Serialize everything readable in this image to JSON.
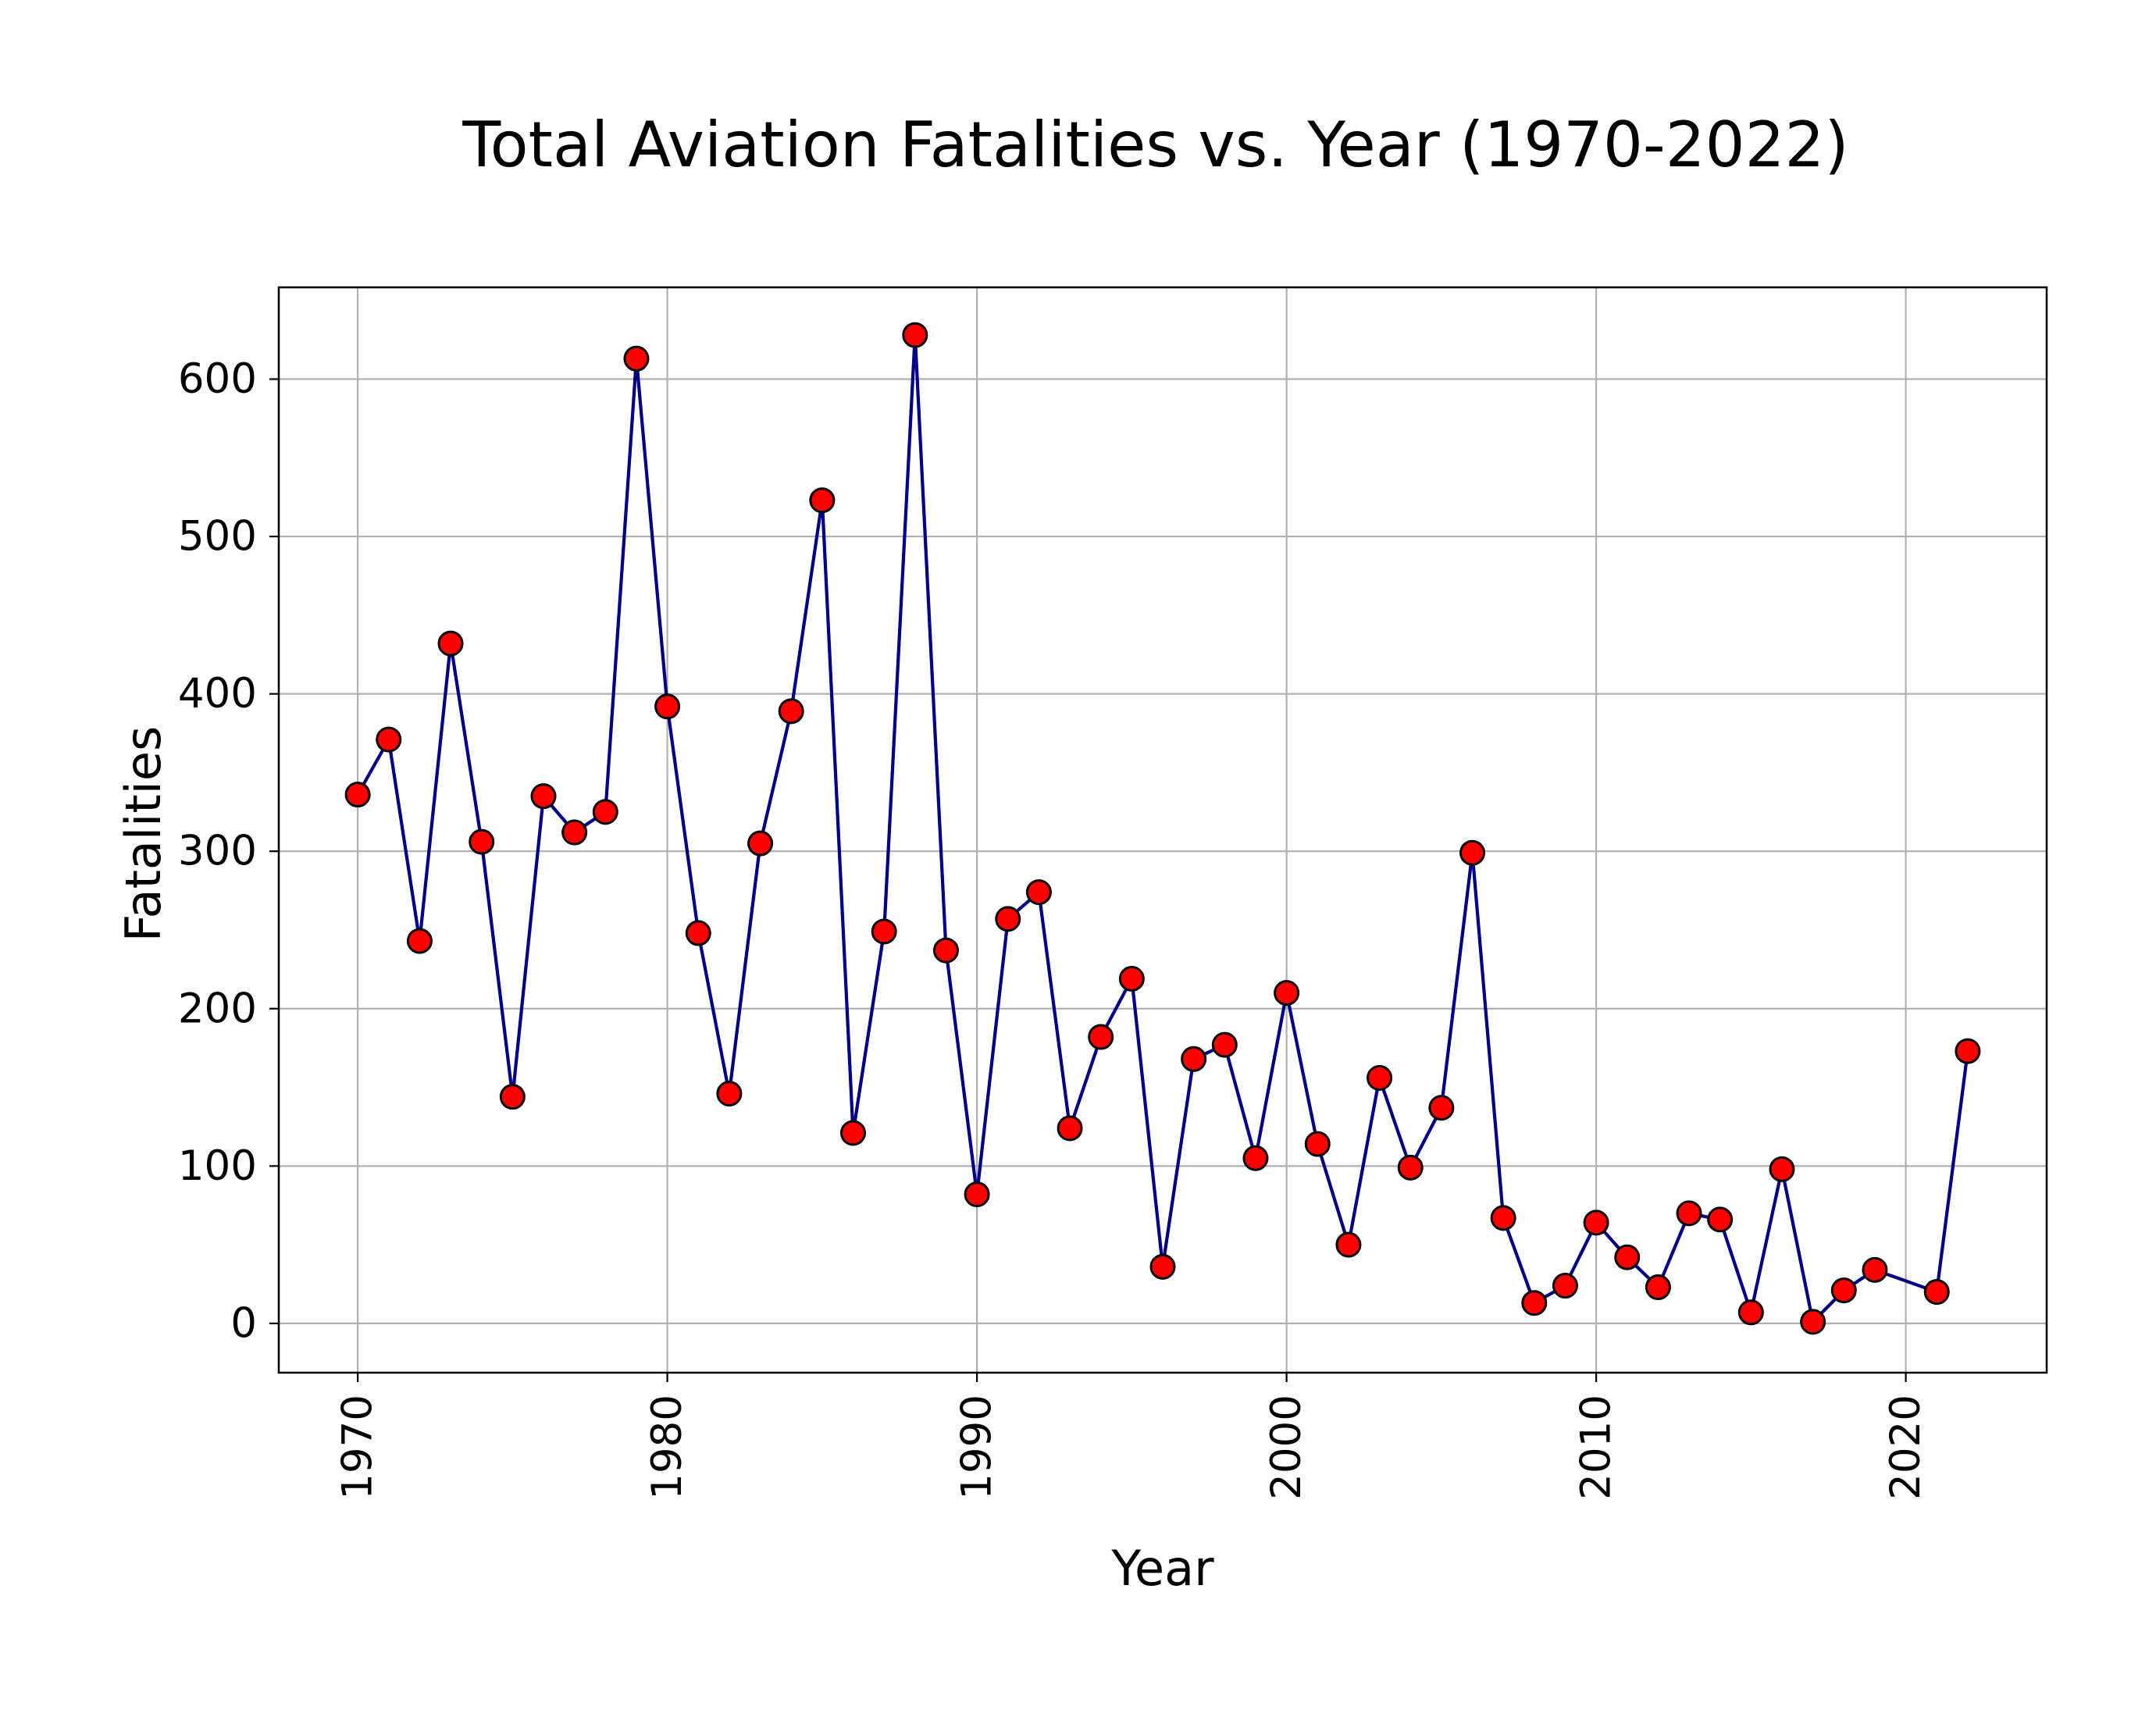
{
  "chart_data": {
    "type": "line",
    "title": "Total Aviation Fatalities vs. Year (1970-2022)",
    "xlabel": "Year",
    "ylabel": "Fatalities",
    "xlim": [
      1967.45,
      1974.55
    ],
    "ylim": [
      -31.3,
      658.3
    ],
    "xlim_note": "",
    "x_range": [
      1967.45,
      2024.55
    ],
    "x_ticks": [
      "1970",
      "1980",
      "1990",
      "2000",
      "2010",
      "2020"
    ],
    "y_ticks": [
      "0",
      "100",
      "200",
      "300",
      "400",
      "500",
      "600"
    ],
    "grid": true,
    "line_color": "#00008b",
    "marker_color": "#ff0000",
    "marker_edge_color": "#000000",
    "series": [
      {
        "x": [
          1970,
          1971,
          1972,
          1973,
          1974,
          1975,
          1976,
          1977,
          1978,
          1979,
          1980,
          1981,
          1982,
          1983,
          1984,
          1985,
          1986,
          1987,
          1988,
          1989,
          1990,
          1991,
          1992,
          1993,
          1994,
          1995,
          1996,
          1997,
          1998,
          1999,
          2000,
          2001,
          2002,
          2003,
          2004,
          2005,
          2006,
          2007,
          2008,
          2009,
          2010,
          2011,
          2012,
          2013,
          2014,
          2015,
          2016,
          2017,
          2018,
          2019,
          2021,
          2022
        ],
        "values": [
          336,
          371,
          243,
          432,
          306,
          144,
          335,
          312,
          325,
          613,
          392,
          248,
          146,
          305,
          389,
          523,
          121,
          249,
          628,
          237,
          82,
          257,
          274,
          124,
          182,
          219,
          36,
          168,
          177,
          105,
          210,
          114,
          50,
          156,
          99,
          137,
          299,
          67,
          13,
          24,
          64,
          42,
          23,
          70,
          66,
          7,
          98,
          1,
          21,
          34,
          20,
          173
        ]
      }
    ]
  }
}
